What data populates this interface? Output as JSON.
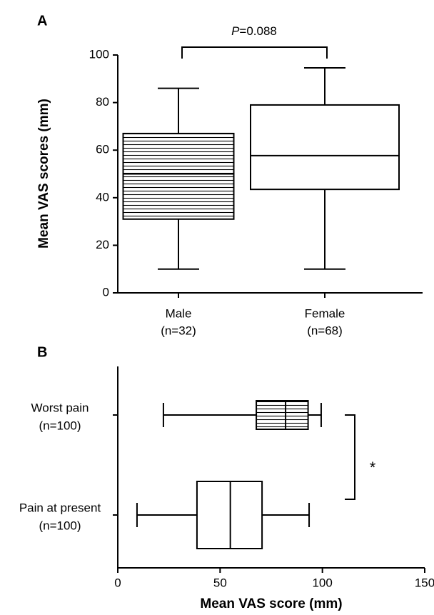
{
  "chart_data": [
    {
      "type": "box",
      "title": "A",
      "orientation": "vertical",
      "ylabel": "Mean VAS scores (mm)",
      "categories": [
        [
          "Male",
          "(n=32)"
        ],
        [
          "Female",
          "(n=68)"
        ]
      ],
      "values": [
        {
          "min": 10,
          "q1": 31,
          "median": 50,
          "q3": 67,
          "max": 86
        },
        {
          "min": 10,
          "q1": 43.5,
          "median": 57.7,
          "q3": 79,
          "max": 94.6
        }
      ],
      "patterns": [
        "horizontal-lines",
        "none"
      ],
      "color": "#000000",
      "ylim": [
        0,
        100
      ],
      "yticks": [
        0,
        20,
        40,
        60,
        80,
        100
      ],
      "annotation": {
        "italic": "P",
        "text": "=0.088"
      }
    },
    {
      "type": "box",
      "title": "B",
      "orientation": "horizontal",
      "xlabel": "Mean VAS score (mm)",
      "categories": [
        [
          "Worst pain",
          "(n=100)"
        ],
        [
          "Pain at present",
          "(n=100)"
        ]
      ],
      "values": [
        {
          "min": 22.3,
          "q1": 67.7,
          "median": 82,
          "q3": 93,
          "max": 99.4
        },
        {
          "min": 9.4,
          "q1": 38.7,
          "median": 55,
          "q3": 70.5,
          "max": 93.5
        }
      ],
      "patterns": [
        "horizontal-lines",
        "none"
      ],
      "color": "#000000",
      "xlim": [
        0,
        150
      ],
      "xticks": [
        0,
        50,
        100,
        150
      ],
      "annotation": {
        "text": "*"
      }
    }
  ]
}
